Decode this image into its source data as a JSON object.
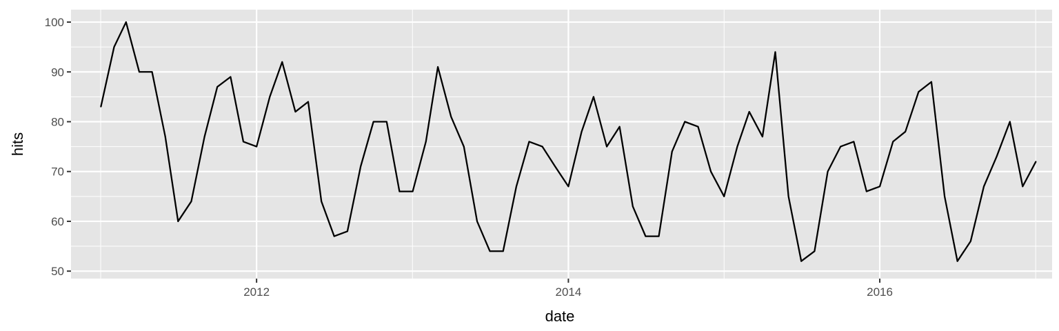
{
  "chart_data": {
    "type": "line",
    "xlabel": "date",
    "ylabel": "hits",
    "x_axis_type": "date",
    "xlim": [
      "2010-10-23",
      "2017-02-08"
    ],
    "ylim": [
      48.5,
      102.5
    ],
    "x_ticks": [
      "2012-01-01",
      "2014-01-01",
      "2016-01-01"
    ],
    "x_tick_labels": [
      "2012",
      "2014",
      "2016"
    ],
    "y_ticks": [
      50,
      60,
      70,
      80,
      90,
      100
    ],
    "grid": true,
    "background": "#e5e5e5",
    "grid_color": "#ffffff",
    "line_color": "#000000",
    "legend": "none",
    "series": [
      {
        "x": [
          "2011-01-01",
          "2011-02-01",
          "2011-03-01",
          "2011-04-01",
          "2011-05-01",
          "2011-06-01",
          "2011-07-01",
          "2011-08-01",
          "2011-09-01",
          "2011-10-01",
          "2011-11-01",
          "2011-12-01",
          "2012-01-01",
          "2012-02-01",
          "2012-03-01",
          "2012-04-01",
          "2012-05-01",
          "2012-06-01",
          "2012-07-01",
          "2012-08-01",
          "2012-09-01",
          "2012-10-01",
          "2012-11-01",
          "2012-12-01",
          "2013-01-01",
          "2013-02-01",
          "2013-03-01",
          "2013-04-01",
          "2013-05-01",
          "2013-06-01",
          "2013-07-01",
          "2013-08-01",
          "2013-09-01",
          "2013-10-01",
          "2013-11-01",
          "2013-12-01",
          "2014-01-01",
          "2014-02-01",
          "2014-03-01",
          "2014-04-01",
          "2014-05-01",
          "2014-06-01",
          "2014-07-01",
          "2014-08-01",
          "2014-09-01",
          "2014-10-01",
          "2014-11-01",
          "2014-12-01",
          "2015-01-01",
          "2015-02-01",
          "2015-03-01",
          "2015-04-01",
          "2015-05-01",
          "2015-06-01",
          "2015-07-01",
          "2015-08-01",
          "2015-09-01",
          "2015-10-01",
          "2015-11-01",
          "2015-12-01",
          "2016-01-01",
          "2016-02-01",
          "2016-03-01",
          "2016-04-01",
          "2016-05-01",
          "2016-06-01",
          "2016-07-01",
          "2016-08-01",
          "2016-09-01",
          "2016-10-01",
          "2016-11-01",
          "2016-12-01",
          "2017-01-01"
        ],
        "y": [
          83,
          95,
          100,
          90,
          90,
          77,
          60,
          64,
          77,
          87,
          89,
          76,
          75,
          85,
          92,
          82,
          84,
          64,
          57,
          58,
          71,
          80,
          80,
          66,
          66,
          76,
          91,
          81,
          75,
          60,
          54,
          54,
          67,
          76,
          75,
          71,
          67,
          78,
          85,
          75,
          79,
          63,
          57,
          57,
          74,
          80,
          79,
          70,
          65,
          75,
          82,
          77,
          94,
          65,
          52,
          54,
          70,
          75,
          76,
          66,
          67,
          76,
          78,
          86,
          88,
          65,
          52,
          56,
          67,
          73,
          80,
          67,
          72
        ]
      }
    ]
  }
}
